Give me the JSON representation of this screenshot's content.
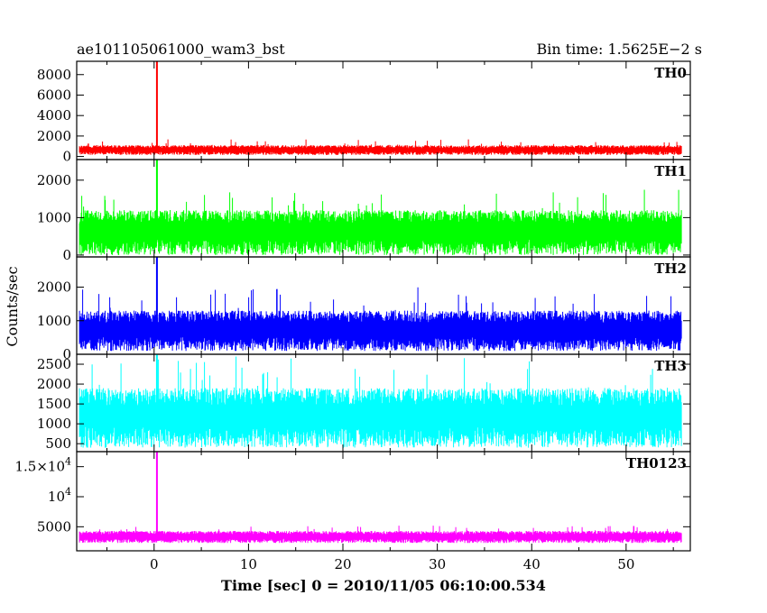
{
  "chart_data": {
    "type": "line",
    "title": "ae101105061000_wam3_bst",
    "bin_time_label": "Bin time: 1.5625E−2 s",
    "xlabel": "Time [sec] 0 = 2010/11/05 06:10:00.534",
    "ylabel": "Counts/sec",
    "xlim": [
      -8.2,
      56.8
    ],
    "data_range": [
      -7.9,
      55.9
    ],
    "xticks": [
      0,
      10,
      20,
      30,
      40,
      50
    ],
    "x_tick_labels": [
      "0",
      "10",
      "20",
      "30",
      "40",
      "50"
    ],
    "panels": [
      {
        "name": "TH0",
        "color": "#ff0000",
        "ylim": [
          -300,
          9300
        ],
        "yticks": [
          0,
          2000,
          4000,
          6000,
          8000
        ],
        "ytick_labels": [
          "0",
          "2000",
          "4000",
          "6000",
          "8000"
        ],
        "baseline_range": [
          150,
          1100
        ],
        "spike": {
          "x": 0.3,
          "y": 9300
        },
        "occasional_peaks_to": 1700
      },
      {
        "name": "TH1",
        "color": "#00ff00",
        "ylim": [
          -50,
          2550
        ],
        "yticks": [
          0,
          1000,
          2000
        ],
        "ytick_labels": [
          "0",
          "1000",
          "2000"
        ],
        "baseline_range": [
          0,
          1200
        ],
        "spike": {
          "x": 0.3,
          "y": 2550
        },
        "occasional_peaks_to": 1750
      },
      {
        "name": "TH2",
        "color": "#0000ff",
        "ylim": [
          0,
          2900
        ],
        "yticks": [
          0,
          1000,
          2000
        ],
        "ytick_labels": [
          "0",
          "1000",
          "2000"
        ],
        "baseline_range": [
          100,
          1300
        ],
        "spike": {
          "x": 0.3,
          "y": 2900
        },
        "occasional_peaks_to": 2000
      },
      {
        "name": "TH3",
        "color": "#00ffff",
        "ylim": [
          300,
          2750
        ],
        "yticks": [
          500,
          1000,
          1500,
          2000,
          2500
        ],
        "ytick_labels": [
          "500",
          "1000",
          "1500",
          "2000",
          "2500"
        ],
        "baseline_range": [
          400,
          1900
        ],
        "spike": {
          "x": 0.3,
          "y": 2750
        },
        "occasional_peaks_to": 2700
      },
      {
        "name": "TH0123",
        "color": "#ff00ff",
        "ylim": [
          1000,
          17500
        ],
        "yticks": [
          5000,
          10000,
          15000
        ],
        "ytick_labels_html": [
          "5000",
          "10<sup>4</sup>",
          "1.5×10<sup>4</sup>"
        ],
        "baseline_range": [
          2300,
          4300
        ],
        "spike": {
          "x": 0.3,
          "y": 17500
        },
        "occasional_peaks_to": 5200
      }
    ]
  }
}
